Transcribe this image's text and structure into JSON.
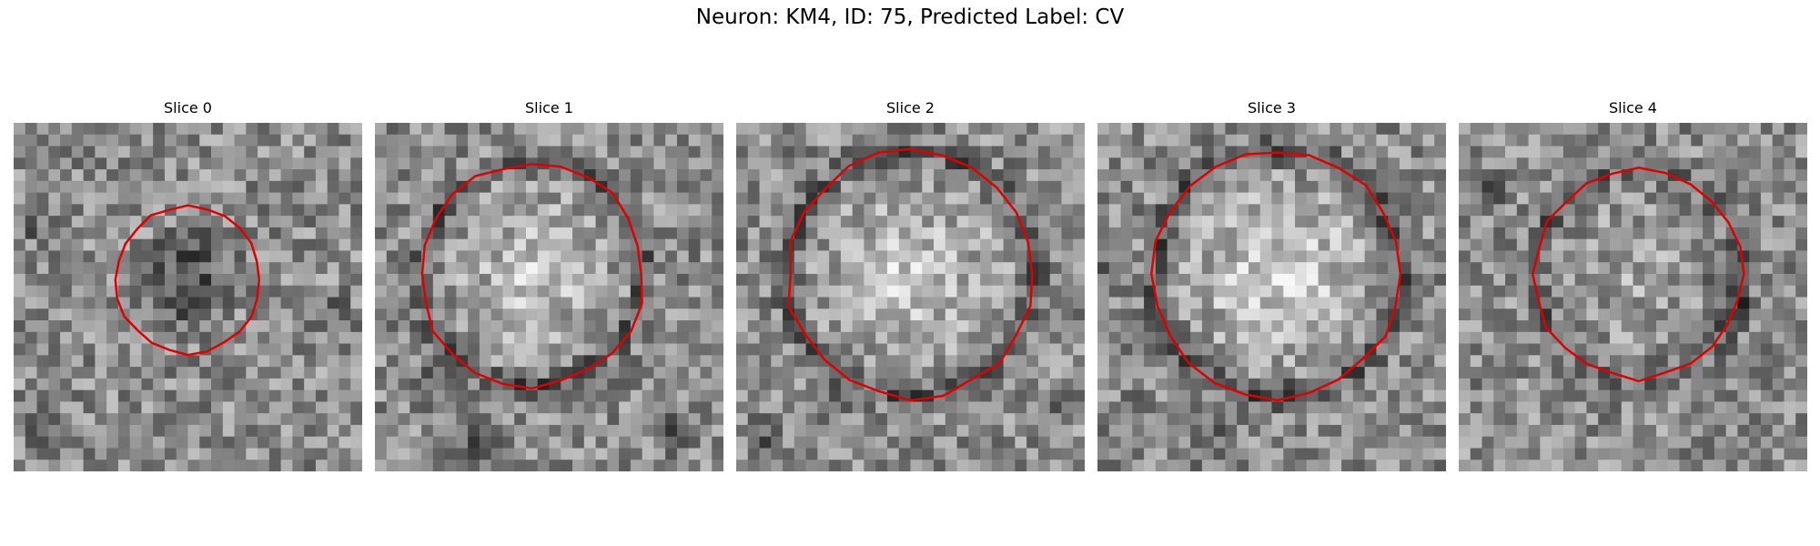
{
  "figure": {
    "suptitle": "Neuron: KM4, ID: 75, Predicted Label: CV"
  },
  "panels": [
    {
      "title": "Slice 0",
      "contour_color": "#e00000",
      "center_tone": "dark"
    },
    {
      "title": "Slice 1",
      "contour_color": "#e00000",
      "center_tone": "light"
    },
    {
      "title": "Slice 2",
      "contour_color": "#e00000",
      "center_tone": "light"
    },
    {
      "title": "Slice 3",
      "contour_color": "#e00000",
      "center_tone": "light"
    },
    {
      "title": "Slice 4",
      "contour_color": "#e00000",
      "center_tone": "light"
    }
  ],
  "colors": {
    "background": "#ffffff",
    "contour": "#e00000"
  }
}
